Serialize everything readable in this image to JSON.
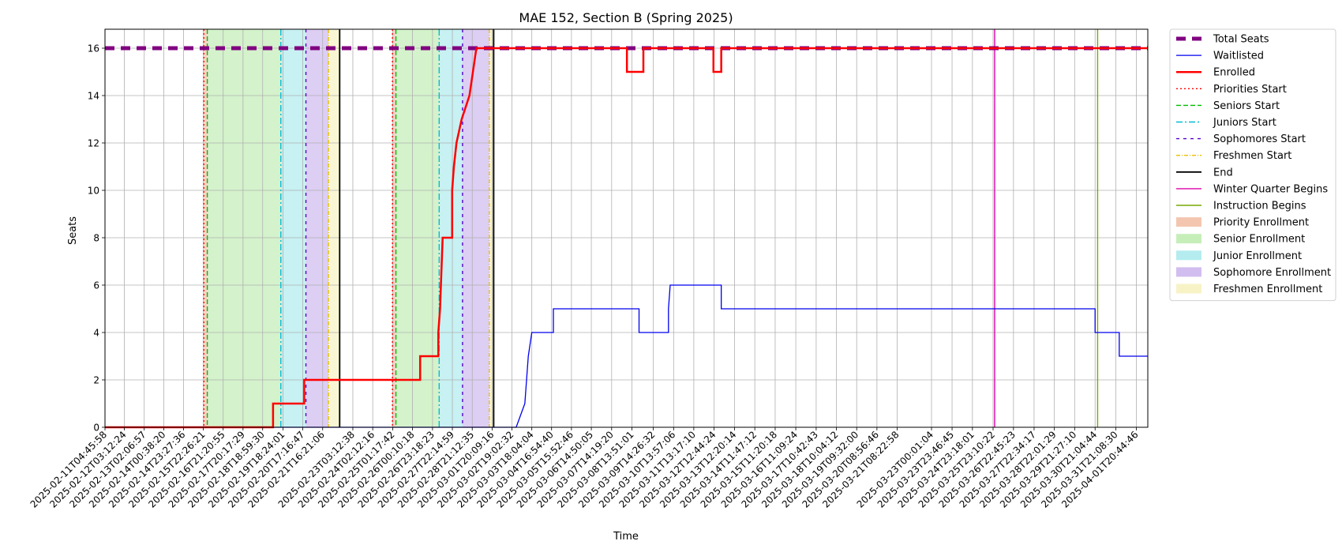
{
  "chart_data": {
    "type": "line",
    "title": "MAE 152, Section B (Spring 2025)",
    "xlabel": "Time",
    "ylabel": "Seats",
    "ylim": [
      0,
      16.8
    ],
    "xlim": [
      "2025-02-11T04:45:58",
      "2025-04-02T10:00:00"
    ],
    "y_ticks": [
      0,
      2,
      4,
      6,
      8,
      10,
      12,
      14,
      16
    ],
    "x_tick_labels": [
      "2025-02-11T04:45:58",
      "2025-02-12T03:12:24",
      "2025-02-13T02:06:57",
      "2025-02-14T00:38:20",
      "2025-02-14T23:27:36",
      "2025-02-15T22:26:21",
      "2025-02-16T21:20:55",
      "2025-02-17T20:17:29",
      "2025-02-18T18:59:30",
      "2025-02-19T18:24:01",
      "2025-02-20T17:16:47",
      "2025-02-21T16:21:06",
      "2025-02-23T03:12:38",
      "2025-02-24T02:12:16",
      "2025-02-25T01:17:42",
      "2025-02-26T00:10:18",
      "2025-02-26T23:18:23",
      "2025-02-27T22:14:59",
      "2025-02-28T21:12:35",
      "2025-03-01T20:09:16",
      "2025-03-02T19:02:32",
      "2025-03-03T18:04:04",
      "2025-03-04T16:54:40",
      "2025-03-05T15:52:46",
      "2025-03-06T14:50:05",
      "2025-03-07T14:19:20",
      "2025-03-08T13:51:01",
      "2025-03-09T14:26:32",
      "2025-03-10T13:57:06",
      "2025-03-11T13:17:10",
      "2025-03-12T12:44:24",
      "2025-03-13T12:20:14",
      "2025-03-14T11:47:12",
      "2025-03-15T11:20:18",
      "2025-03-16T11:09:24",
      "2025-03-17T10:42:43",
      "2025-03-18T10:04:12",
      "2025-03-19T09:32:00",
      "2025-03-20T08:56:46",
      "2025-03-21T08:22:58",
      "2025-03-23T00:01:04",
      "2025-03-23T23:46:45",
      "2025-03-24T23:18:01",
      "2025-03-25T23:10:22",
      "2025-03-26T22:45:23",
      "2025-03-27T22:34:17",
      "2025-03-28T22:01:29",
      "2025-03-29T21:27:10",
      "2025-03-30T21:04:44",
      "2025-03-31T21:08:30",
      "2025-04-01T20:44:46"
    ],
    "grid": true,
    "legend_position": "outside-right",
    "series": [
      {
        "name": "Total Seats",
        "style": "dashed-thick",
        "color": "#800080",
        "points": [
          [
            "2025-02-11T04:45:58",
            16
          ],
          [
            "2025-04-02T10:00:00",
            16
          ]
        ]
      },
      {
        "name": "Waitlisted",
        "style": "solid-thin",
        "color": "#0000ee",
        "points": [
          [
            "2025-02-11T04:45:58",
            0
          ],
          [
            "2025-03-03T00:00:00",
            0
          ],
          [
            "2025-03-03T10:00:00",
            1
          ],
          [
            "2025-03-03T12:00:00",
            2
          ],
          [
            "2025-03-03T14:00:00",
            3
          ],
          [
            "2025-03-03T18:04:04",
            4
          ],
          [
            "2025-03-04T19:00:00",
            4
          ],
          [
            "2025-03-04T19:00:00",
            5
          ],
          [
            "2025-03-08T22:00:00",
            5
          ],
          [
            "2025-03-08T22:00:00",
            4
          ],
          [
            "2025-03-10T08:00:00",
            4
          ],
          [
            "2025-03-10T08:00:00",
            5
          ],
          [
            "2025-03-10T10:00:00",
            6
          ],
          [
            "2025-03-12T21:00:00",
            6
          ],
          [
            "2025-03-12T21:00:00",
            5
          ],
          [
            "2025-03-30T21:04:44",
            5
          ],
          [
            "2025-03-30T21:04:44",
            4
          ],
          [
            "2025-04-01T01:00:00",
            4
          ],
          [
            "2025-04-01T01:00:00",
            3
          ],
          [
            "2025-04-02T10:00:00",
            3
          ]
        ]
      },
      {
        "name": "Enrolled",
        "style": "solid-thick",
        "color": "#ff0000",
        "points": [
          [
            "2025-02-11T04:45:58",
            0
          ],
          [
            "2025-02-19T07:00:00",
            0
          ],
          [
            "2025-02-19T07:00:00",
            1
          ],
          [
            "2025-02-20T19:00:00",
            1
          ],
          [
            "2025-02-20T19:00:00",
            2
          ],
          [
            "2025-02-26T09:00:00",
            2
          ],
          [
            "2025-02-26T09:00:00",
            3
          ],
          [
            "2025-02-27T06:00:00",
            3
          ],
          [
            "2025-02-27T06:00:00",
            4
          ],
          [
            "2025-02-27T08:00:00",
            5
          ],
          [
            "2025-02-27T09:00:00",
            6
          ],
          [
            "2025-02-27T10:00:00",
            7
          ],
          [
            "2025-02-27T11:00:00",
            8
          ],
          [
            "2025-02-27T22:00:00",
            8
          ],
          [
            "2025-02-27T22:00:00",
            10
          ],
          [
            "2025-02-28T00:00:00",
            11
          ],
          [
            "2025-02-28T03:00:00",
            12
          ],
          [
            "2025-02-28T09:00:00",
            13
          ],
          [
            "2025-02-28T18:00:00",
            14
          ],
          [
            "2025-02-28T22:00:00",
            15
          ],
          [
            "2025-03-01T02:00:00",
            16
          ],
          [
            "2025-03-08T08:00:00",
            16
          ],
          [
            "2025-03-08T08:00:00",
            15
          ],
          [
            "2025-03-09T03:00:00",
            15
          ],
          [
            "2025-03-09T03:00:00",
            16
          ],
          [
            "2025-03-12T12:00:00",
            16
          ],
          [
            "2025-03-12T12:00:00",
            15
          ],
          [
            "2025-03-12T21:00:00",
            15
          ],
          [
            "2025-03-12T21:00:00",
            16
          ],
          [
            "2025-04-02T10:00:00",
            16
          ]
        ]
      }
    ],
    "events": [
      {
        "name": "Priorities Start",
        "color": "#ff0000",
        "dash": "2,3",
        "dates": [
          "2025-02-15T23:00:00",
          "2025-02-25T01:00:00"
        ]
      },
      {
        "name": "Seniors Start",
        "color": "#00bb00",
        "dash": "6,3",
        "dates": [
          "2025-02-16T03:00:00",
          "2025-02-25T05:00:00"
        ]
      },
      {
        "name": "Juniors Start",
        "color": "#00bcd4",
        "dash": "8,3,2,3",
        "dates": [
          "2025-02-19T16:00:00",
          "2025-02-27T07:00:00"
        ]
      },
      {
        "name": "Sophomores Start",
        "color": "#5500cc",
        "dash": "4,5",
        "dates": [
          "2025-02-20T21:00:00",
          "2025-02-28T10:00:00"
        ]
      },
      {
        "name": "Freshmen Start",
        "color": "#e8c000",
        "dash": "5,2,1,2",
        "dates": [
          "2025-02-21T23:00:00",
          "2025-03-01T17:00:00"
        ]
      },
      {
        "name": "End",
        "color": "#000000",
        "dash": "",
        "dates": [
          "2025-02-22T12:00:00",
          "2025-03-01T22:00:00"
        ]
      },
      {
        "name": "Winter Quarter Begins",
        "color": "#dd00aa",
        "dash": "",
        "dates": [
          "2025-03-26T01:00:00"
        ]
      },
      {
        "name": "Instruction Begins",
        "color": "#77aa00",
        "dash": "",
        "dates": [
          "2025-03-31T00:00:00"
        ]
      }
    ],
    "spans": [
      {
        "name": "Priority Enrollment",
        "color": "#f4c6b0",
        "ranges": [
          [
            "2025-02-15T23:00:00",
            "2025-02-16T03:00:00"
          ],
          [
            "2025-02-25T01:00:00",
            "2025-02-25T05:00:00"
          ]
        ]
      },
      {
        "name": "Senior Enrollment",
        "color": "#c6eeb9",
        "ranges": [
          [
            "2025-02-16T03:00:00",
            "2025-02-19T16:00:00"
          ],
          [
            "2025-02-25T05:00:00",
            "2025-02-27T07:00:00"
          ]
        ]
      },
      {
        "name": "Junior Enrollment",
        "color": "#b4ecef",
        "ranges": [
          [
            "2025-02-19T16:00:00",
            "2025-02-20T21:00:00"
          ],
          [
            "2025-02-27T07:00:00",
            "2025-02-28T10:00:00"
          ]
        ]
      },
      {
        "name": "Sophomore Enrollment",
        "color": "#d2bdf0",
        "ranges": [
          [
            "2025-02-20T21:00:00",
            "2025-02-21T23:00:00"
          ],
          [
            "2025-02-28T10:00:00",
            "2025-03-01T17:00:00"
          ]
        ]
      },
      {
        "name": "Freshmen Enrollment",
        "color": "#f7f3c6",
        "ranges": [
          [
            "2025-02-21T23:00:00",
            "2025-02-22T12:00:00"
          ],
          [
            "2025-03-01T17:00:00",
            "2025-03-01T22:00:00"
          ]
        ]
      }
    ]
  }
}
